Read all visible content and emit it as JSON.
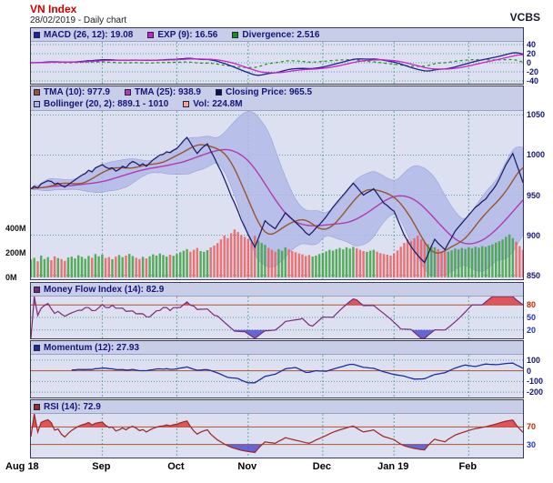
{
  "header": {
    "title": "VN Index",
    "subtitle": "28/02/2019 - Daily chart",
    "brand": "VCBS"
  },
  "x_axis": {
    "labels": [
      "Aug 18",
      "Sep",
      "Oct",
      "Nov",
      "Dec",
      "Jan 19",
      "Feb"
    ]
  },
  "panels": {
    "macd": {
      "legend": [
        {
          "label": "MACD (26, 12): 19.08",
          "color": "#2020a8"
        },
        {
          "label": "EXP (9): 16.56",
          "color": "#cc22cc"
        },
        {
          "label": "Divergence: 2.516",
          "color": "#159315"
        }
      ],
      "ticks": [
        {
          "t": "40"
        },
        {
          "t": "20"
        },
        {
          "t": "0"
        },
        {
          "t": "-20"
        },
        {
          "t": "-40"
        }
      ]
    },
    "price": {
      "legend1": [
        {
          "label": "TMA (10): 977.9",
          "color": "#96562e"
        },
        {
          "label": "TMA (25): 938.9",
          "color": "#b23ab2"
        },
        {
          "label": "Closing Price: 965.5",
          "color": "#10104e"
        }
      ],
      "legend2": [
        {
          "label": "Bollinger (20, 2): 889.1 - 1010",
          "color": "#aab4e6"
        },
        {
          "label": "Vol: 224.8M",
          "color": "#ff9f8f"
        }
      ],
      "ticks": [
        {
          "t": "1050"
        },
        {
          "t": "1000"
        },
        {
          "t": "950"
        },
        {
          "t": "900"
        },
        {
          "t": "850"
        }
      ],
      "volume_ticks": [
        {
          "t": "400M",
          "c": "#111111"
        },
        {
          "t": "200M",
          "c": "#111111"
        },
        {
          "t": "0M",
          "c": "#111111"
        }
      ]
    },
    "mfi": {
      "legend": [
        {
          "label": "Money Flow Index (14): 82.9",
          "color": "#7a2a7a"
        }
      ],
      "ticks": [
        {
          "t": "80",
          "c": "#cc2200"
        },
        {
          "t": "50",
          "c": "#2233bb"
        },
        {
          "t": "20",
          "c": "#2233bb"
        }
      ]
    },
    "momentum": {
      "legend": [
        {
          "label": "Momentum (12): 27.93",
          "color": "#1c2f9e"
        }
      ],
      "ticks": [
        {
          "t": "100"
        },
        {
          "t": "0"
        },
        {
          "t": "-100"
        },
        {
          "t": "-200"
        }
      ]
    },
    "rsi": {
      "legend": [
        {
          "label": "RSI (14): 72.9",
          "color": "#a02828"
        }
      ],
      "ticks": [
        {
          "t": "70",
          "c": "#cc2200"
        },
        {
          "t": "30",
          "c": "#2233bb"
        }
      ]
    }
  },
  "chart_data": {
    "type": "line",
    "title": "VN Index - Daily chart",
    "as_of_date": "28/02/2019",
    "x_labels": [
      "Aug 18",
      "Sep",
      "Oct",
      "Nov",
      "Dec",
      "Jan 19",
      "Feb"
    ],
    "month_start_indices": [
      0,
      21,
      43,
      64,
      86,
      107,
      129
    ],
    "price_axis_range": [
      845,
      1055
    ],
    "price_axis_ticks": [
      1050,
      1000,
      950,
      900,
      850
    ],
    "volume_axis_ticks_millions": [
      400,
      200,
      0
    ],
    "close": [
      958,
      961,
      959,
      964,
      966,
      968,
      967,
      964,
      965,
      962,
      960,
      963,
      966,
      969,
      972,
      975,
      977,
      981,
      979,
      984,
      986,
      988,
      985,
      983,
      984,
      980,
      982,
      986,
      984,
      989,
      992,
      990,
      987,
      989,
      986,
      990,
      994,
      997,
      1000,
      1001,
      1004,
      1003,
      1006,
      1008,
      1013,
      1018,
      1022,
      1015,
      1008,
      1002,
      1007,
      1011,
      1014,
      1005,
      997,
      988,
      980,
      970,
      960,
      949,
      940,
      930,
      919,
      910,
      901,
      893,
      885,
      896,
      907,
      918,
      914,
      911,
      908,
      915,
      921,
      928,
      924,
      920,
      916,
      912,
      908,
      903,
      900,
      904,
      909,
      913,
      918,
      923,
      929,
      935,
      940,
      945,
      950,
      955,
      960,
      965,
      960,
      955,
      950,
      953,
      955,
      958,
      952,
      946,
      940,
      937,
      933,
      930,
      920,
      910,
      900,
      893,
      886,
      880,
      875,
      870,
      866,
      876,
      886,
      895,
      890,
      886,
      882,
      890,
      897,
      905,
      910,
      915,
      920,
      925,
      930,
      935,
      938,
      942,
      945,
      951,
      956,
      962,
      970,
      979,
      988,
      995,
      1002,
      990,
      978,
      965.5
    ],
    "volume_millions": [
      145,
      160,
      132,
      178,
      150,
      165,
      140,
      172,
      158,
      149,
      135,
      162,
      170,
      155,
      180,
      168,
      152,
      175,
      160,
      190,
      172,
      185,
      158,
      166,
      148,
      170,
      182,
      165,
      178,
      192,
      175,
      160,
      150,
      168,
      155,
      172,
      188,
      178,
      195,
      182,
      170,
      185,
      176,
      190,
      205,
      218,
      230,
      210,
      225,
      240,
      215,
      208,
      222,
      245,
      260,
      280,
      310,
      340,
      320,
      360,
      390,
      370,
      345,
      330,
      310,
      285,
      340,
      300,
      280,
      265,
      240,
      225,
      210,
      230,
      218,
      245,
      228,
      215,
      205,
      195,
      188,
      175,
      182,
      170,
      178,
      190,
      200,
      212,
      225,
      218,
      230,
      240,
      228,
      245,
      235,
      250,
      238,
      225,
      215,
      208,
      218,
      225,
      210,
      198,
      190,
      185,
      178,
      195,
      220,
      250,
      280,
      310,
      295,
      320,
      340,
      310,
      290,
      270,
      255,
      245,
      230,
      215,
      225,
      210,
      220,
      235,
      228,
      240,
      232,
      245,
      238,
      250,
      242,
      255,
      248,
      260,
      270,
      282,
      295,
      310,
      330,
      350,
      320,
      290,
      255,
      224.8
    ],
    "indicators": {
      "macd": {
        "params": "26, 12",
        "value": 19.08,
        "signal_params": "9",
        "signal_value": 16.56,
        "divergence": 2.516,
        "axis_range": [
          -46,
          46
        ],
        "axis_ticks": [
          40,
          20,
          0,
          -20,
          -40
        ]
      },
      "tma10": {
        "params": "10",
        "value": 977.9
      },
      "tma25": {
        "params": "25",
        "value": 938.9
      },
      "closing_price": 965.5,
      "bollinger": {
        "params": "20, 2",
        "lower": 889.1,
        "upper": 1010
      },
      "volume_last": "224.8M",
      "mfi": {
        "params": "14",
        "value": 82.9,
        "axis_range": [
          0,
          100
        ],
        "ref_lines": [
          80,
          50,
          20
        ]
      },
      "momentum": {
        "params": "12",
        "value": 27.93,
        "axis_range": [
          -250,
          150
        ],
        "axis_ticks": [
          100,
          0,
          -100,
          -200
        ]
      },
      "rsi": {
        "params": "14",
        "value": 72.9,
        "axis_range": [
          0,
          100
        ],
        "ref_lines": [
          70,
          30
        ]
      }
    }
  }
}
